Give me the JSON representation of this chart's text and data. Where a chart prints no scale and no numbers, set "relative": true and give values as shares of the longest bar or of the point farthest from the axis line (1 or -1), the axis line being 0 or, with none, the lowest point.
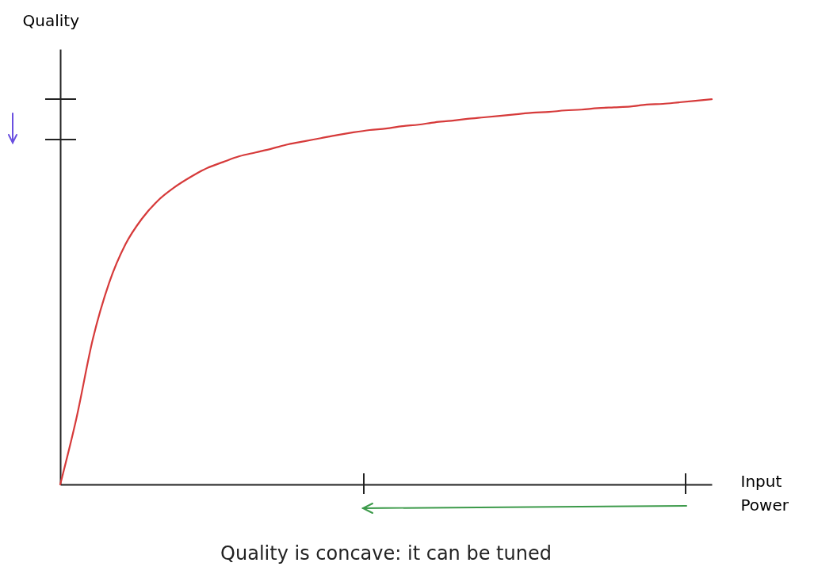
{
  "chart_data": {
    "type": "line",
    "title": "Quality is concave: it can be tuned",
    "xlabel": "Input Power",
    "ylabel": "Quality",
    "relative": true,
    "categories": [
      null,
      null,
      null,
      null,
      null,
      null,
      null,
      null,
      null,
      null,
      null,
      null,
      null,
      null,
      null,
      null,
      null,
      null,
      null,
      null,
      null,
      null,
      null,
      null,
      null,
      null,
      null,
      null,
      null,
      null,
      null,
      null,
      null,
      null,
      null,
      null,
      null,
      null,
      null,
      null,
      null
    ],
    "series": [
      {
        "color": "#d63a3a",
        "values": [
          0,
          0.173,
          0.377,
          0.523,
          0.623,
          0.689,
          0.737,
          0.771,
          0.798,
          0.821,
          0.837,
          0.852,
          0.862,
          0.872,
          0.883,
          0.891,
          0.899,
          0.907,
          0.914,
          0.92,
          0.924,
          0.93,
          0.934,
          0.94,
          0.944,
          0.949,
          0.953,
          0.957,
          0.961,
          0.965,
          0.967,
          0.971,
          0.973,
          0.977,
          0.979,
          0.981,
          0.986,
          0.988,
          0.992,
          0.996,
          1.0
        ]
      }
    ],
    "marker": "none",
    "line_style": "solid",
    "grid": false
  }
}
